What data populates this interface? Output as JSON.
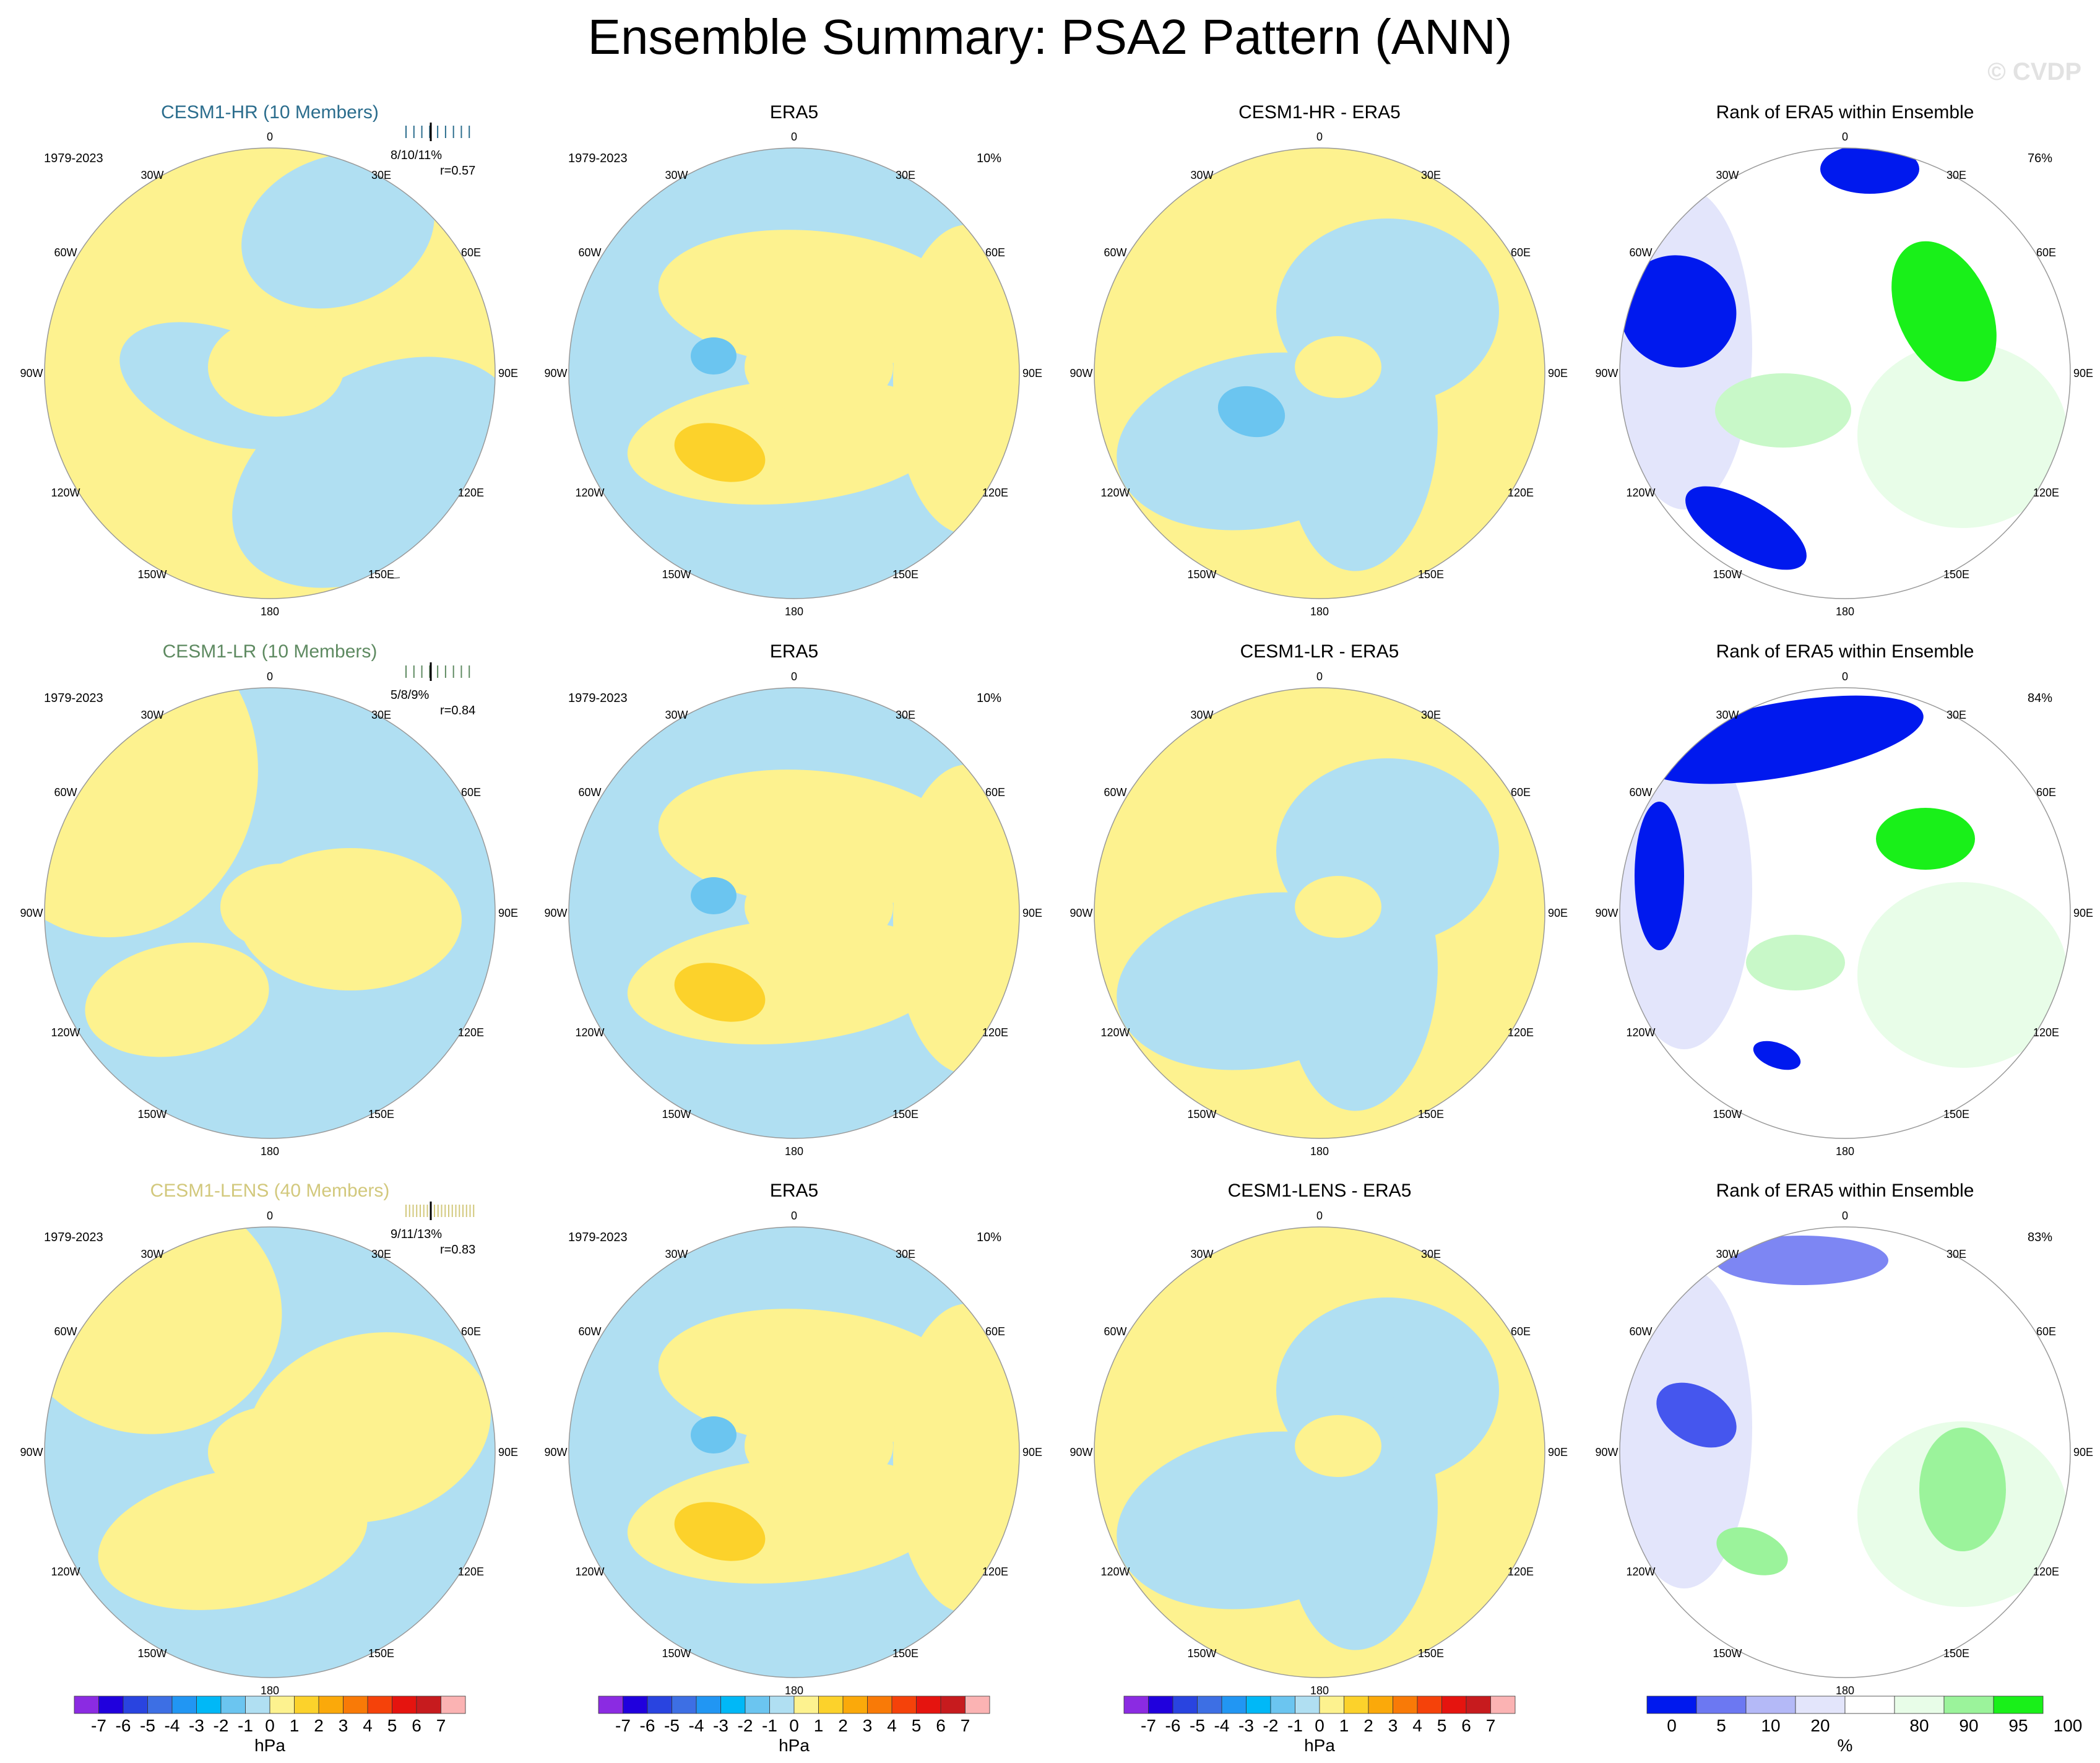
{
  "title": "Ensemble Summary: PSA2 Pattern (ANN)",
  "watermark": "© CVDP",
  "colors": {
    "positive": "#fdf28f",
    "negative": "#b0dff2",
    "strong_positive": "#fcd22b",
    "strong_negative": "#6bc5f0",
    "coast": "#888888",
    "rank_low": "#0019ee",
    "rank_mid": "#e3e5fb",
    "rank_high": "#19f019",
    "rank_highlight": "#c8f8c8"
  },
  "chart_data": {
    "type": "polar-map-panels",
    "projection": "Southern Hemisphere polar stereographic",
    "longitude_labels": [
      "0",
      "30E",
      "60E",
      "90E",
      "120E",
      "150E",
      "180",
      "150W",
      "120W",
      "90W",
      "60W",
      "30W"
    ],
    "rows": [
      {
        "ensemble": {
          "title": "CESM1-HR (10 Members)",
          "title_color": "#2b6d8d",
          "period": "1979-2023",
          "spread": "8/10/11%",
          "correlation": "r=0.57"
        },
        "era5": {
          "title": "ERA5",
          "period": "1979-2023",
          "pct": "10%"
        },
        "diff": {
          "title": "CESM1-HR - ERA5"
        },
        "rank": {
          "title": "Rank of ERA5 within Ensemble",
          "pct": "76%"
        }
      },
      {
        "ensemble": {
          "title": "CESM1-LR (10 Members)",
          "title_color": "#5e8a61",
          "period": "1979-2023",
          "spread": "5/8/9%",
          "correlation": "r=0.84"
        },
        "era5": {
          "title": "ERA5",
          "period": "1979-2023",
          "pct": "10%"
        },
        "diff": {
          "title": "CESM1-LR - ERA5"
        },
        "rank": {
          "title": "Rank of ERA5 within Ensemble",
          "pct": "84%"
        }
      },
      {
        "ensemble": {
          "title": "CESM1-LENS (40 Members)",
          "title_color": "#d2c87c",
          "period": "1979-2023",
          "spread": "9/11/13%",
          "correlation": "r=0.83"
        },
        "era5": {
          "title": "ERA5",
          "period": "1979-2023",
          "pct": "10%"
        },
        "diff": {
          "title": "CESM1-LENS - ERA5"
        },
        "rank": {
          "title": "Rank of ERA5 within Ensemble",
          "pct": "83%"
        }
      }
    ],
    "colorbar_slp": {
      "unit": "hPa",
      "labels": [
        "-7",
        "-6",
        "-5",
        "-4",
        "-3",
        "-2",
        "-1",
        "0",
        "1",
        "2",
        "3",
        "4",
        "5",
        "6",
        "7"
      ],
      "colors": [
        "#8b2be2",
        "#2000dd",
        "#2944e0",
        "#3d6fe4",
        "#2196f3",
        "#00b8f7",
        "#6bc5f0",
        "#b0dff2",
        "#fdf28f",
        "#fcd22b",
        "#fba90a",
        "#f97a07",
        "#f5420a",
        "#e5140f",
        "#c71b1e",
        "#fbb3b3"
      ]
    },
    "colorbar_rank": {
      "unit": "%",
      "labels": [
        "0",
        "5",
        "10",
        "20",
        "80",
        "90",
        "95",
        "100"
      ],
      "colors": [
        "#0019ee",
        "#6c78f2",
        "#b4b9f7",
        "#e3e5fb",
        "#ffffff",
        "#e8fde8",
        "#9bf39b",
        "#19f019"
      ]
    }
  }
}
